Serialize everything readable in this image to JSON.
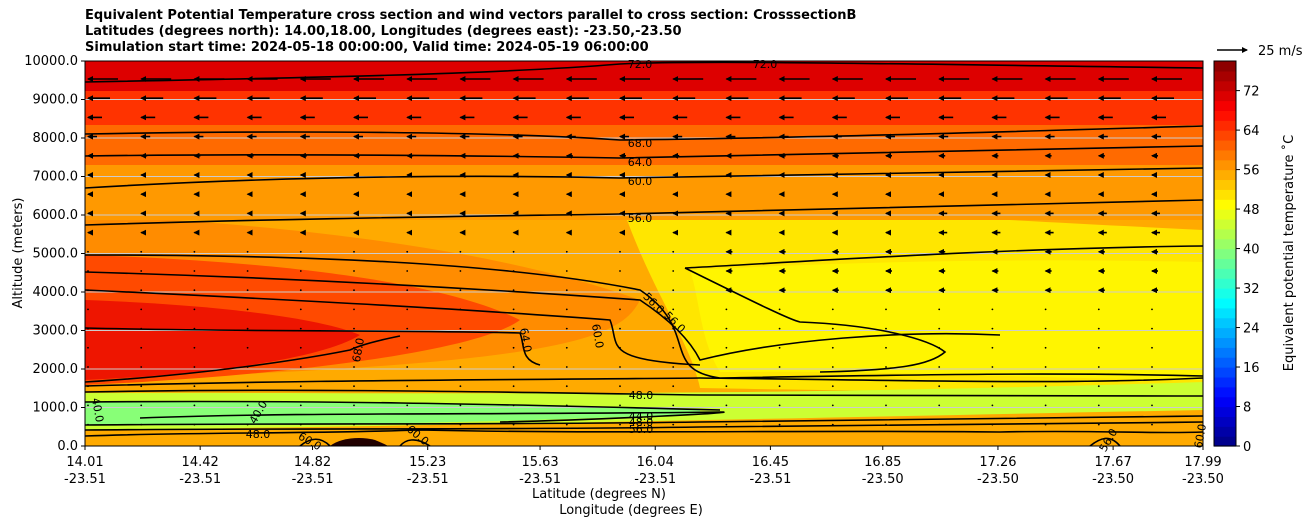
{
  "chart_data": {
    "type": "contourf",
    "title_lines": [
      "Equivalent Potential Temperature cross section and wind vectors parallel to cross section: CrosssectionB",
      "Latitudes (degrees north): 14.00,18.00, Longitudes (degrees east): -23.50,-23.50",
      "Simulation start time: 2024-05-18 00:00:00, Valid time: 2024-05-19 06:00:00"
    ],
    "ylabel": "Altitude (meters)",
    "xlabel_lat": "Latitude (degrees N)",
    "xlabel_lon": "Longitude (degrees E)",
    "ylim": [
      0,
      10000
    ],
    "y_ticks": [
      "0.0",
      "1000.0",
      "2000.0",
      "3000.0",
      "4000.0",
      "5000.0",
      "6000.0",
      "7000.0",
      "8000.0",
      "9000.0",
      "10000.0"
    ],
    "x_ticks": [
      {
        "lat": "14.01",
        "lon": "-23.51"
      },
      {
        "lat": "14.42",
        "lon": "-23.51"
      },
      {
        "lat": "14.82",
        "lon": "-23.51"
      },
      {
        "lat": "15.23",
        "lon": "-23.51"
      },
      {
        "lat": "15.63",
        "lon": "-23.51"
      },
      {
        "lat": "16.04",
        "lon": "-23.51"
      },
      {
        "lat": "16.45",
        "lon": "-23.51"
      },
      {
        "lat": "16.85",
        "lon": "-23.50"
      },
      {
        "lat": "17.26",
        "lon": "-23.50"
      },
      {
        "lat": "17.67",
        "lon": "-23.50"
      },
      {
        "lat": "17.99",
        "lon": "-23.50"
      }
    ],
    "grid": "horizontal",
    "colorbar": {
      "label": "Equivalent potential temperature ˚C",
      "range": [
        0,
        78
      ],
      "ticks": [
        "0",
        "8",
        "16",
        "24",
        "32",
        "40",
        "48",
        "56",
        "64",
        "72"
      ],
      "colormap": "jet"
    },
    "quiver_key": {
      "label": "25 m/s"
    },
    "contour_labels": [
      "72.0",
      "72.0",
      "68.0",
      "64.0",
      "60.0",
      "56.0",
      "56.0",
      "56.0",
      "64.0",
      "60.0",
      "68.0",
      "48.0",
      "44.0",
      "48.0",
      "56.0",
      "40.0",
      "40.0",
      "48.0",
      "60.0",
      "60.0",
      "56.0",
      "60.0"
    ]
  }
}
